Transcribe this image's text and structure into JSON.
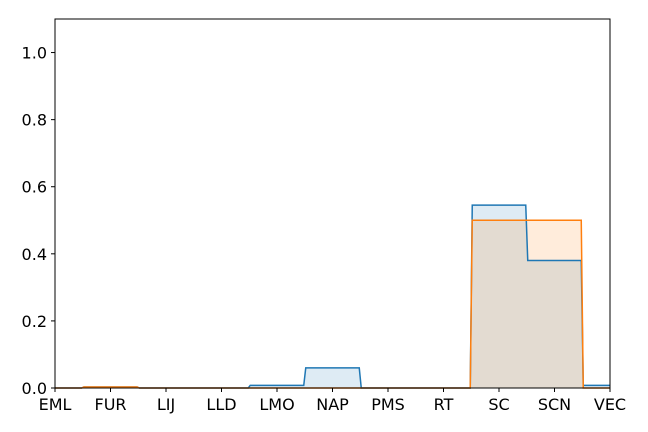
{
  "chart_data": {
    "type": "area",
    "categories": [
      "EML",
      "FUR",
      "LIJ",
      "LLD",
      "LMO",
      "NAP",
      "PMS",
      "RT",
      "SC",
      "SCN",
      "VEC"
    ],
    "ylim": [
      0,
      1.1
    ],
    "yticks": [
      "0.0",
      "0.2",
      "0.4",
      "0.6",
      "0.8",
      "1.0"
    ],
    "grid": false,
    "series": [
      {
        "color": "#1f77b4",
        "fill_color": "#1f77b4",
        "values": [
          0.0,
          0.003,
          0.0,
          0.0,
          0.008,
          0.06,
          0.0,
          0.0,
          0.545,
          0.38,
          0.008
        ]
      },
      {
        "color": "#ff7f0e",
        "fill_color": "#ff7f0e",
        "values": [
          0.0,
          0.003,
          0.0,
          0.0,
          0.0,
          0.0,
          0.0,
          0.0,
          0.5,
          0.5,
          0.0
        ]
      }
    ]
  }
}
